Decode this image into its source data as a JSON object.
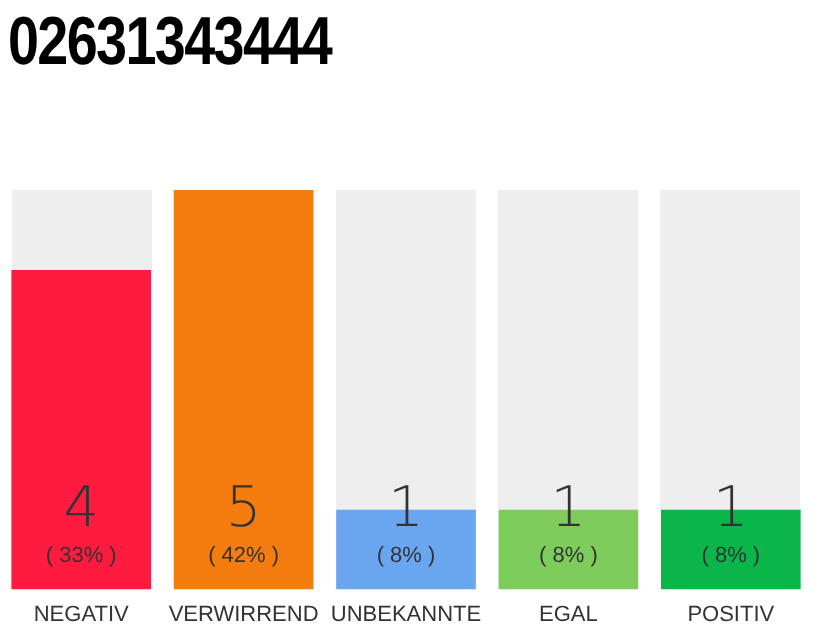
{
  "chart_data": {
    "type": "bar",
    "title": "02631343444",
    "categories": [
      "NEGATIV",
      "VERWIRREND",
      "UNBEKANNTE",
      "EGAL",
      "POSITIV"
    ],
    "values": [
      4,
      5,
      1,
      1,
      1
    ],
    "colors": [
      "#ff1a40",
      "#f57d0f",
      "#6aa5f0",
      "#7dcc5c",
      "#0ab54a"
    ],
    "value_labels": [
      "4\n( 33% )",
      "5\n( 42% )",
      "1\n( 8% )",
      "1\n( 8% )",
      "1\n( 8% )"
    ],
    "grid": false,
    "legend": false
  }
}
